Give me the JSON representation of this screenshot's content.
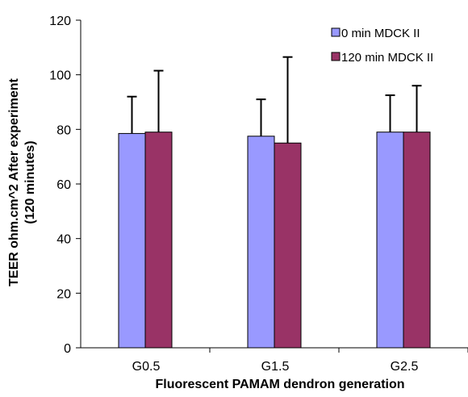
{
  "chart_data": {
    "type": "bar",
    "categories": [
      "G0.5",
      "G1.5",
      "G2.5"
    ],
    "series": [
      {
        "name": "0 min MDCK II",
        "values": [
          78.5,
          77.5,
          79
        ],
        "errors": [
          13.5,
          13.5,
          13.5
        ],
        "color": "#9999FF"
      },
      {
        "name": "120 min MDCK II",
        "values": [
          79,
          75,
          79
        ],
        "errors": [
          22.5,
          31.5,
          17
        ],
        "color": "#993366"
      }
    ],
    "title": "",
    "xlabel": "Fluorescent PAMAM dendron generation",
    "ylabel_lines": [
      "TEER ohm.cm^2 After experiment",
      "(120 minutes)"
    ],
    "ylim": [
      0,
      120
    ],
    "yticks": [
      0,
      20,
      40,
      60,
      80,
      100,
      120
    ],
    "grid": false,
    "legend_position": "top-right"
  }
}
